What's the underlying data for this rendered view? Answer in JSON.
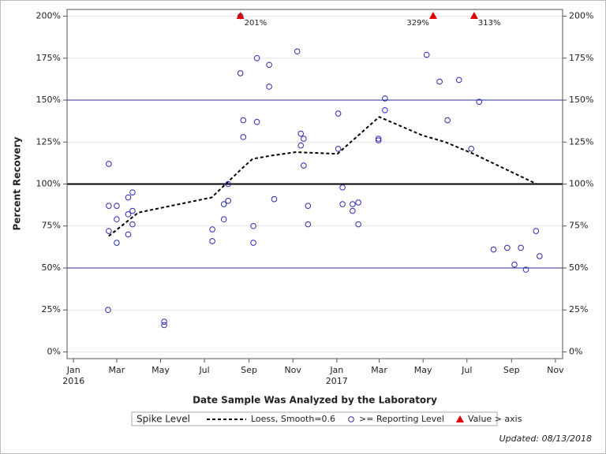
{
  "chart_data": {
    "type": "scatter",
    "xlabel": "Date Sample Was Analyzed by the Laboratory",
    "ylabel": "Percent Recovery",
    "footer": "Updated: 08/13/2018",
    "legend_title": "Spike Level",
    "xlim": [
      "2015-12-23",
      "2017-11-11"
    ],
    "xticks": [
      {
        "value": "2016-01-01",
        "label": "Jan"
      },
      {
        "value": "2016-03-01",
        "label": "Mar"
      },
      {
        "value": "2016-05-01",
        "label": "May"
      },
      {
        "value": "2016-07-01",
        "label": "Jul"
      },
      {
        "value": "2016-09-01",
        "label": "Sep"
      },
      {
        "value": "2016-11-01",
        "label": "Nov"
      },
      {
        "value": "2017-01-01",
        "label": "Jan"
      },
      {
        "value": "2017-03-01",
        "label": "Mar"
      },
      {
        "value": "2017-05-01",
        "label": "May"
      },
      {
        "value": "2017-07-01",
        "label": "Jul"
      },
      {
        "value": "2017-09-01",
        "label": "Sep"
      },
      {
        "value": "2017-11-01",
        "label": "Nov"
      }
    ],
    "xtick_years": [
      {
        "value": "2016-01-01",
        "label": "2016"
      },
      {
        "value": "2017-01-01",
        "label": "2017"
      }
    ],
    "ylim": [
      -4,
      204
    ],
    "yticks": [
      {
        "value": 0,
        "label": "0%"
      },
      {
        "value": 25,
        "label": "25%"
      },
      {
        "value": 50,
        "label": "50%"
      },
      {
        "value": 75,
        "label": "75%"
      },
      {
        "value": 100,
        "label": "100%"
      },
      {
        "value": 125,
        "label": "125%"
      },
      {
        "value": 150,
        "label": "150%"
      },
      {
        "value": 175,
        "label": "175%"
      },
      {
        "value": 200,
        "label": "200%"
      }
    ],
    "grid": true,
    "reference_lines": [
      {
        "value": 100,
        "color": "#000000"
      },
      {
        "value": 50,
        "color": "#2b2b9a"
      },
      {
        "value": 150,
        "color": "#2b2b9a"
      }
    ],
    "series": [
      {
        "name": "Loess, Smooth=0.6",
        "kind": "line",
        "color": "#000000",
        "x": [
          "2016-02-19",
          "2016-03-31",
          "2016-07-11",
          "2016-08-24",
          "2016-09-06",
          "2016-10-03",
          "2016-11-05",
          "2017-01-02",
          "2017-03-01",
          "2017-04-30",
          "2017-06-01",
          "2017-07-10",
          "2017-08-23",
          "2017-10-06"
        ],
        "values": [
          69,
          83,
          92,
          110,
          115,
          117,
          119,
          118,
          140,
          129,
          125,
          118,
          109,
          100
        ]
      },
      {
        "name": ">= Reporting Level",
        "kind": "circle",
        "color": "#2b2bb0",
        "x": [
          "2016-02-19",
          "2016-02-19",
          "2016-02-19",
          "2016-02-18",
          "2016-03-01",
          "2016-03-01",
          "2016-03-01",
          "2016-03-17",
          "2016-03-17",
          "2016-03-17",
          "2016-03-23",
          "2016-03-23",
          "2016-03-23",
          "2016-05-06",
          "2016-05-06",
          "2016-07-12",
          "2016-07-12",
          "2016-07-28",
          "2016-07-28",
          "2016-08-03",
          "2016-08-03",
          "2016-08-20",
          "2016-08-20",
          "2016-08-24",
          "2016-08-24",
          "2016-09-07",
          "2016-09-07",
          "2016-09-12",
          "2016-09-12",
          "2016-09-29",
          "2016-09-29",
          "2016-10-06",
          "2016-11-07",
          "2016-11-12",
          "2016-11-12",
          "2016-11-16",
          "2016-11-16",
          "2016-11-22",
          "2016-11-22",
          "2017-01-03",
          "2017-01-03",
          "2017-01-09",
          "2017-01-09",
          "2017-01-23",
          "2017-01-23",
          "2017-01-31",
          "2017-01-31",
          "2017-02-28",
          "2017-02-28",
          "2017-03-09",
          "2017-03-09",
          "2017-05-06",
          "2017-05-24",
          "2017-06-04",
          "2017-06-20",
          "2017-07-07",
          "2017-07-18",
          "2017-08-07",
          "2017-08-26",
          "2017-09-05",
          "2017-09-14",
          "2017-09-21",
          "2017-10-05",
          "2017-10-10"
        ],
        "values": [
          112,
          87,
          72,
          25,
          87,
          79,
          65,
          92,
          82,
          70,
          95,
          84,
          76,
          18,
          16,
          73,
          66,
          88,
          79,
          90,
          100,
          200,
          166,
          138,
          128,
          75,
          65,
          175,
          137,
          171,
          158,
          91,
          179,
          130,
          123,
          127,
          111,
          87,
          76,
          142,
          121,
          98,
          88,
          88,
          84,
          89,
          76,
          127,
          126,
          151,
          144,
          177,
          161,
          138,
          162,
          121,
          149,
          61,
          62,
          52,
          62,
          49,
          72,
          57
        ]
      },
      {
        "name": "Value > axis",
        "kind": "triangle",
        "color": "#e00000",
        "x": [
          "2016-08-20",
          "2017-05-15",
          "2017-07-11"
        ],
        "values": [
          201,
          329,
          313
        ],
        "value_labels": [
          "201%",
          "329%",
          "313%"
        ]
      }
    ]
  }
}
